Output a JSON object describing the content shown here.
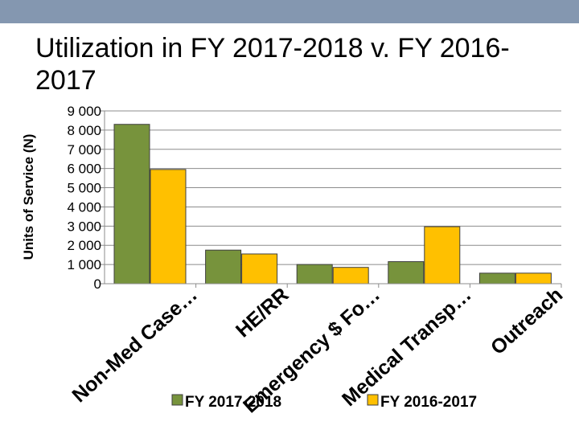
{
  "slide_title": "Utilization in FY 2017-2018 v. FY 2016-2017",
  "chart_data": {
    "type": "bar",
    "title": "",
    "xlabel": "",
    "ylabel": "Units of Service (N)",
    "ylim": [
      0,
      9000
    ],
    "yticks": [
      0,
      1000,
      2000,
      3000,
      4000,
      5000,
      6000,
      7000,
      8000,
      9000
    ],
    "ytick_labels": [
      "0",
      "1 000",
      "2 000",
      "3 000",
      "4 000",
      "5 000",
      "6 000",
      "7 000",
      "8 000",
      "9 000"
    ],
    "grid": true,
    "legend_position": "bottom",
    "categories": [
      "Non-Med Case…",
      "HE/RR",
      "Emergency $ Fo…",
      "Medical Transp…",
      "Outreach"
    ],
    "series": [
      {
        "name": "FY 2017-2018",
        "color": "#77933c",
        "values": [
          8300,
          1750,
          1000,
          1150,
          550
        ]
      },
      {
        "name": "FY 2016-2017",
        "color": "#ffc000",
        "values": [
          5950,
          1550,
          850,
          2970,
          550
        ]
      }
    ]
  }
}
